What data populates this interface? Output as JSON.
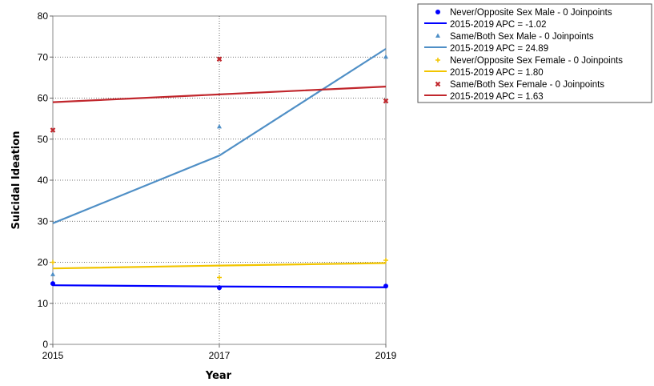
{
  "chart_data": {
    "type": "line",
    "title": "",
    "xlabel": "Year",
    "ylabel": "Suicidal Ideation",
    "xlim": [
      2015,
      2019
    ],
    "ylim": [
      0,
      80
    ],
    "x_ticks": [
      "2015",
      "2017",
      "2019"
    ],
    "y_ticks": [
      "0",
      "10",
      "20",
      "30",
      "40",
      "50",
      "60",
      "70",
      "80"
    ],
    "grid": "dotted, both axes",
    "legend_position": "right",
    "series": [
      {
        "name": "Never/Opposite Sex Male - 0 Joinpoints",
        "fit_label": "2015-2019 APC  = -1.02",
        "color": "#0000ff",
        "marker": "circle",
        "observed": [
          [
            2015,
            14.8
          ],
          [
            2017,
            13.8
          ],
          [
            2019,
            14.2
          ]
        ],
        "fitted": [
          [
            2015,
            14.4
          ],
          [
            2017,
            14.1
          ],
          [
            2019,
            13.9
          ]
        ]
      },
      {
        "name": "Same/Both Sex Male - 0 Joinpoints",
        "fit_label": "2015-2019 APC  = 24.89",
        "color": "#4f8fc6",
        "marker": "triangle",
        "observed": [
          [
            2015,
            17.0
          ],
          [
            2017,
            53.0
          ],
          [
            2019,
            70.0
          ]
        ],
        "fitted": [
          [
            2015,
            29.5
          ],
          [
            2017,
            46.0
          ],
          [
            2019,
            72.0
          ]
        ]
      },
      {
        "name": "Never/Opposite Sex Female - 0 Joinpoints",
        "fit_label": "2015-2019 APC  = 1.80",
        "color": "#f2c500",
        "marker": "plus",
        "observed": [
          [
            2015,
            20.0
          ],
          [
            2017,
            16.3
          ],
          [
            2019,
            20.5
          ]
        ],
        "fitted": [
          [
            2015,
            18.5
          ],
          [
            2017,
            19.2
          ],
          [
            2019,
            19.8
          ]
        ]
      },
      {
        "name": "Same/Both Sex Female - 0 Joinpoints",
        "fit_label": "2015-2019 APC  = 1.63",
        "color": "#c1272d",
        "marker": "x",
        "observed": [
          [
            2015,
            52.2
          ],
          [
            2017,
            69.5
          ],
          [
            2019,
            59.3
          ]
        ],
        "fitted": [
          [
            2015,
            59.0
          ],
          [
            2017,
            60.9
          ],
          [
            2019,
            62.8
          ]
        ]
      }
    ]
  }
}
